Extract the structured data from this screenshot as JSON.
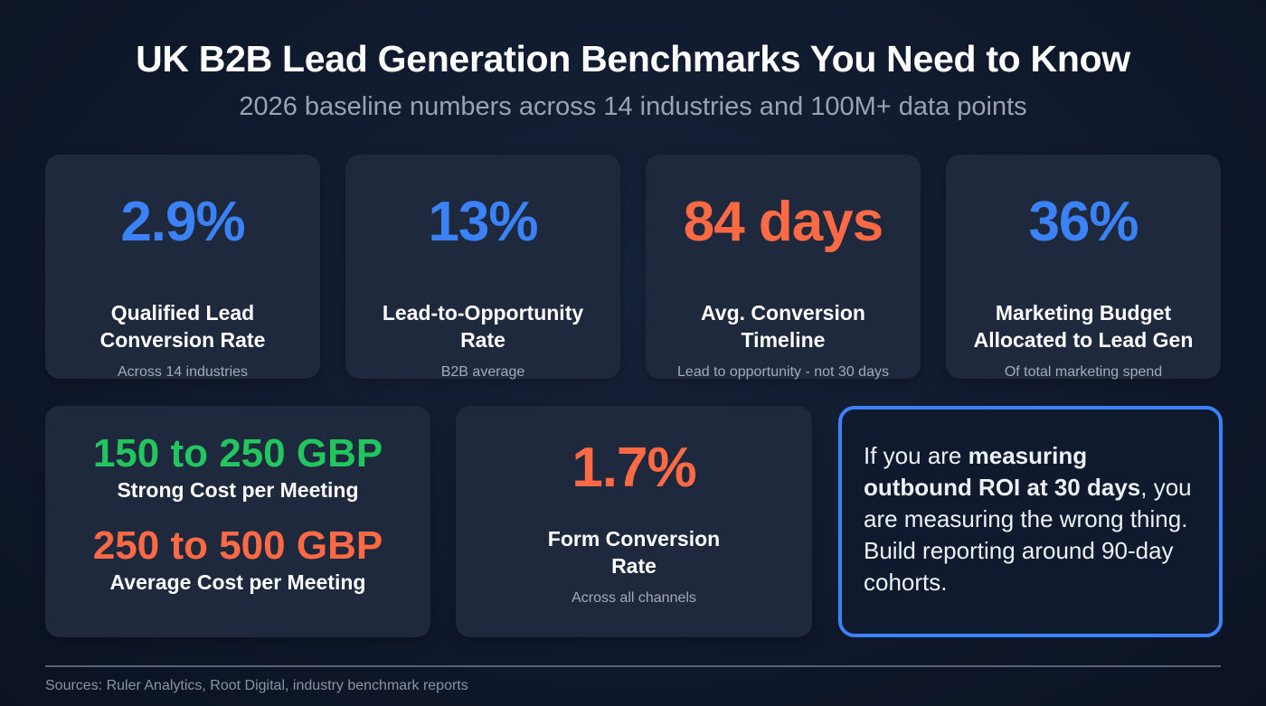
{
  "header": {
    "title": "UK B2B Lead Generation Benchmarks You Need to Know",
    "subtitle": "2026 baseline numbers across 14 industries and 100M+ data points"
  },
  "stats": [
    {
      "value": "2.9%",
      "label_1": "Qualified Lead",
      "label_2": "Conversion Rate",
      "note": "Across 14 industries"
    },
    {
      "value": "13%",
      "label_1": "Lead-to-Opportunity",
      "label_2": "Rate",
      "note": "B2B average"
    },
    {
      "value": "84 days",
      "label_1": "Avg. Conversion",
      "label_2": "Timeline",
      "note": "Lead to opportunity - not 30 days"
    },
    {
      "value": "36%",
      "label_1": "Marketing Budget",
      "label_2": "Allocated to Lead Gen",
      "note": "Of total marketing spend"
    }
  ],
  "cost": {
    "strong_value": "150 to 250 GBP",
    "strong_label": "Strong Cost per Meeting",
    "avg_value": "250 to 500 GBP",
    "avg_label": "Average Cost per Meeting"
  },
  "form": {
    "value": "1.7%",
    "label_1": "Form Conversion",
    "label_2": "Rate",
    "note": "Across all channels"
  },
  "callout": {
    "pre": "If you are ",
    "bold": "measuring outbound ROI at 30 days",
    "post": ", you are measuring the wrong thing. Build reporting around 90-day cohorts."
  },
  "footer": {
    "sources": "Sources: Ruler Analytics, Root Digital, industry benchmark reports"
  },
  "colors": {
    "blue": "#3b82f6",
    "orange": "#ff6a45",
    "green": "#22c55e"
  }
}
